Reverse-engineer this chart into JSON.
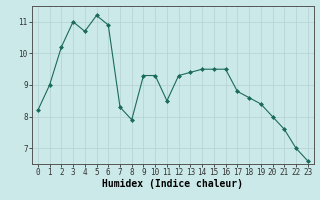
{
  "x": [
    0,
    1,
    2,
    3,
    4,
    5,
    6,
    7,
    8,
    9,
    10,
    11,
    12,
    13,
    14,
    15,
    16,
    17,
    18,
    19,
    20,
    21,
    22,
    23
  ],
  "y": [
    8.2,
    9.0,
    10.2,
    11.0,
    10.7,
    11.2,
    10.9,
    8.3,
    7.9,
    9.3,
    9.3,
    8.5,
    9.3,
    9.4,
    9.5,
    9.5,
    9.5,
    8.8,
    8.6,
    8.4,
    8.0,
    7.6,
    7.0,
    6.6
  ],
  "line_color": "#1a6b5a",
  "marker": "D",
  "marker_size": 2.0,
  "bg_color": "#cce9e9",
  "grid_color": "#b8d4d4",
  "xlabel": "Humidex (Indice chaleur)",
  "ylim": [
    6.5,
    11.5
  ],
  "xlim": [
    -0.5,
    23.5
  ],
  "yticks": [
    7,
    8,
    9,
    10,
    11
  ],
  "xticks": [
    0,
    1,
    2,
    3,
    4,
    5,
    6,
    7,
    8,
    9,
    10,
    11,
    12,
    13,
    14,
    15,
    16,
    17,
    18,
    19,
    20,
    21,
    22,
    23
  ],
  "tick_label_fontsize": 5.5,
  "xlabel_fontsize": 7.0,
  "spine_color": "#555555"
}
